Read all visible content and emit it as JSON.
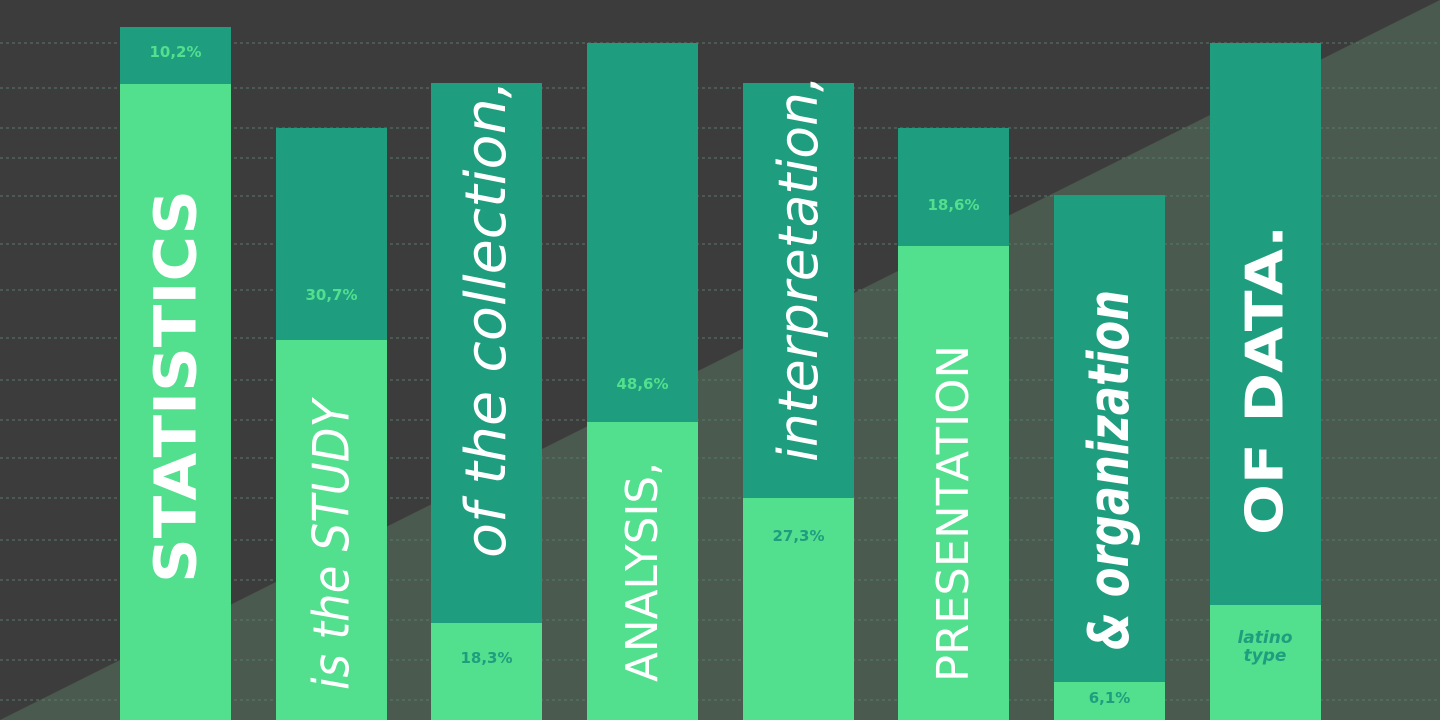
{
  "columns": [
    {
      "text": "STATISTICS",
      "label": "10,2%"
    },
    {
      "text": "is the STUDY",
      "label": "30,7%"
    },
    {
      "text": "of the collection,",
      "label": "18,3%"
    },
    {
      "text": "ANALYSIS,",
      "label": "48,6%"
    },
    {
      "text": "interpretation,",
      "label": "27,3%"
    },
    {
      "text": "PRESENTATION",
      "label": "18,6%"
    },
    {
      "text": "& organization",
      "label": "6,1%"
    },
    {
      "text": "OF DATA."
    }
  ],
  "logo": {
    "line1": "latino",
    "line2": "type"
  }
}
